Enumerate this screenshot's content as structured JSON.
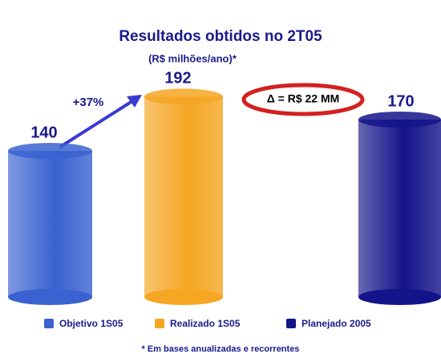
{
  "chart_data": {
    "type": "bar",
    "title": "Resultados obtidos no 2T05",
    "subtitle": "(R$ milhões/ano)*",
    "categories": [
      "Objetivo 1S05",
      "Realizado 1S05",
      "Planejado 2005"
    ],
    "values": [
      140,
      192,
      170
    ],
    "colors": [
      "#3a62d0",
      "#f5a623",
      "#14148a"
    ],
    "annotations": [
      "+37%",
      "Δ = R$ 22 MM"
    ],
    "footnote": "* Em bases anualizadas e recorrentes"
  }
}
